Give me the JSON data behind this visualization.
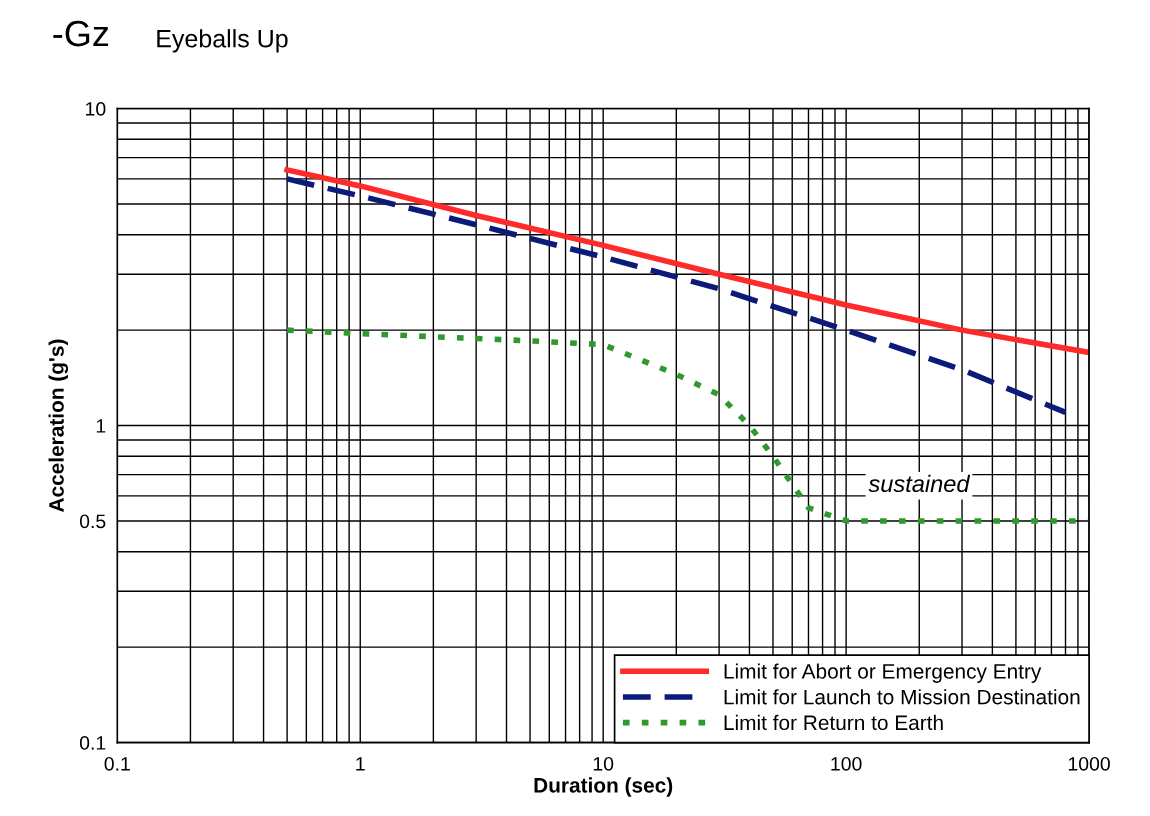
{
  "chart_data": {
    "type": "line",
    "title": "-Gz",
    "subtitle": "Eyeballs Up",
    "xlabel": "Duration (sec)",
    "ylabel": "Acceleration (g's)",
    "log": "xy",
    "xlim": [
      0.1,
      1000
    ],
    "ylim": [
      0.1,
      10
    ],
    "xticks": [
      0.1,
      1,
      10,
      100,
      1000
    ],
    "yticks": [
      0.1,
      0.5,
      1,
      10
    ],
    "grid": true,
    "legend": "bottom right",
    "marker": "none",
    "series": [
      {
        "name": "Limit for Abort or Emergency Entry",
        "color": "#ff2a2a",
        "line_style": "solid",
        "x": [
          0.5,
          1,
          3,
          10,
          30,
          100,
          300,
          1000
        ],
        "values": [
          6.4,
          5.7,
          4.6,
          3.7,
          3.0,
          2.4,
          2.0,
          1.7
        ]
      },
      {
        "name": "Limit for Launch to Mission Destination",
        "color": "#0c1a7a",
        "line_style": "dashed",
        "x": [
          0.5,
          1,
          3,
          10,
          30,
          100,
          300,
          800
        ],
        "values": [
          6.0,
          5.3,
          4.3,
          3.4,
          2.7,
          2.0,
          1.5,
          1.1
        ]
      },
      {
        "name": "Limit for Return to Earth",
        "color": "#2e9a2e",
        "line_style": "dotted",
        "x": [
          0.5,
          1,
          5,
          10,
          20,
          30,
          40,
          50,
          70,
          100,
          300,
          1000
        ],
        "values": [
          2.0,
          1.95,
          1.85,
          1.8,
          1.45,
          1.25,
          1.0,
          0.8,
          0.55,
          0.5,
          0.5,
          0.5
        ]
      }
    ],
    "annotations": [
      "sustained"
    ]
  }
}
